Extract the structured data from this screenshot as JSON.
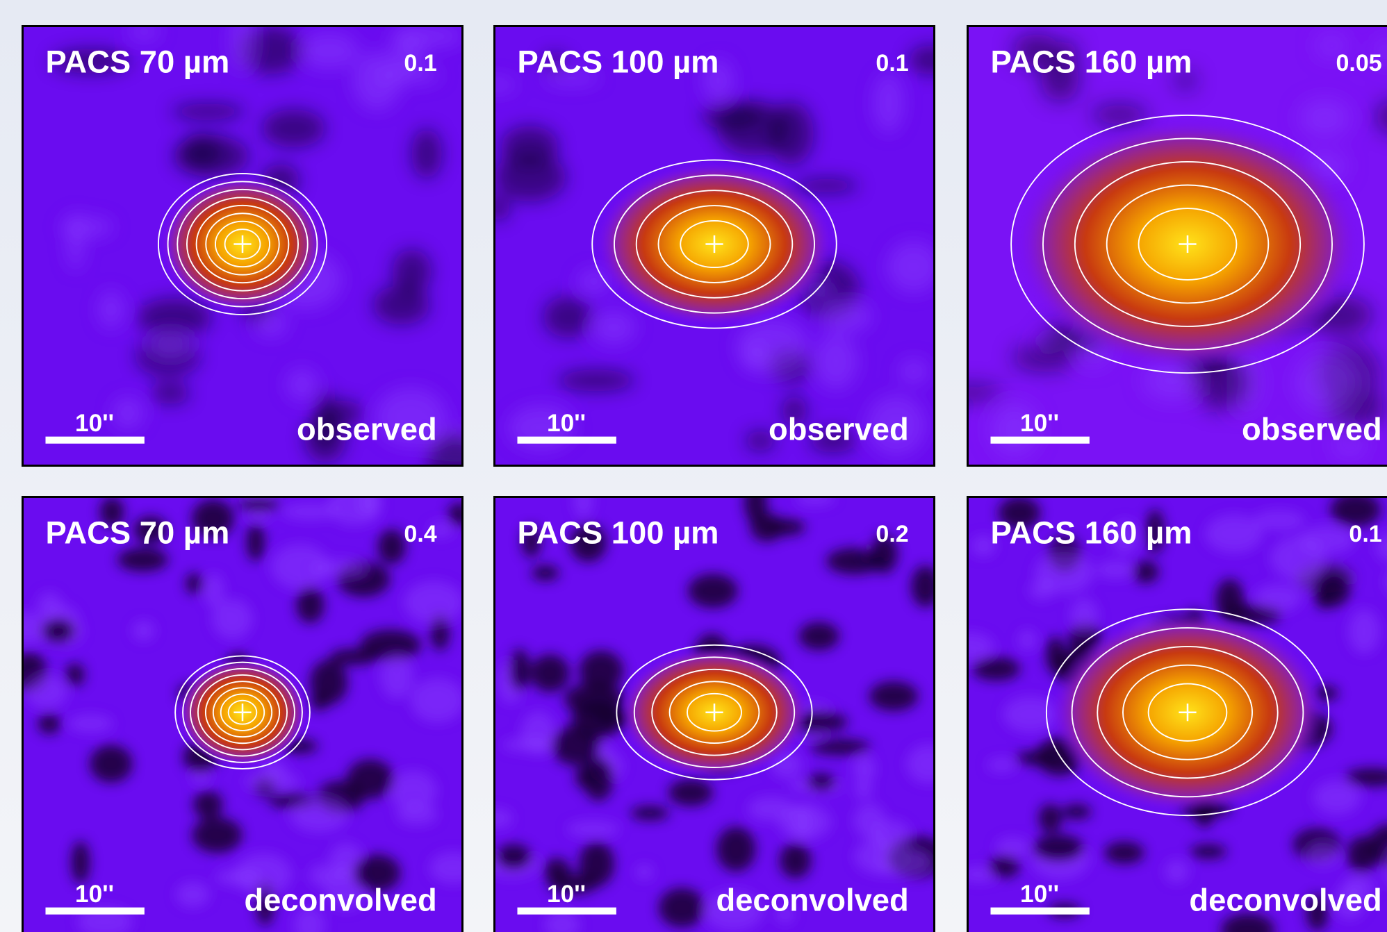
{
  "panels": [
    {
      "band": "PACS 70 µm",
      "scale": "0.1",
      "bar": "10''",
      "mode": "observed"
    },
    {
      "band": "PACS 100 µm",
      "scale": "0.1",
      "bar": "10''",
      "mode": "observed"
    },
    {
      "band": "PACS 160 µm",
      "scale": "0.05",
      "bar": "10''",
      "mode": "observed"
    },
    {
      "band": "PACS 70 µm",
      "scale": "0.4",
      "bar": "10''",
      "mode": "deconvolved"
    },
    {
      "band": "PACS 100 µm",
      "scale": "0.2",
      "bar": "10''",
      "mode": "deconvolved"
    },
    {
      "band": "PACS 160 µm",
      "scale": "0.1",
      "bar": "10''",
      "mode": "deconvolved"
    }
  ]
}
